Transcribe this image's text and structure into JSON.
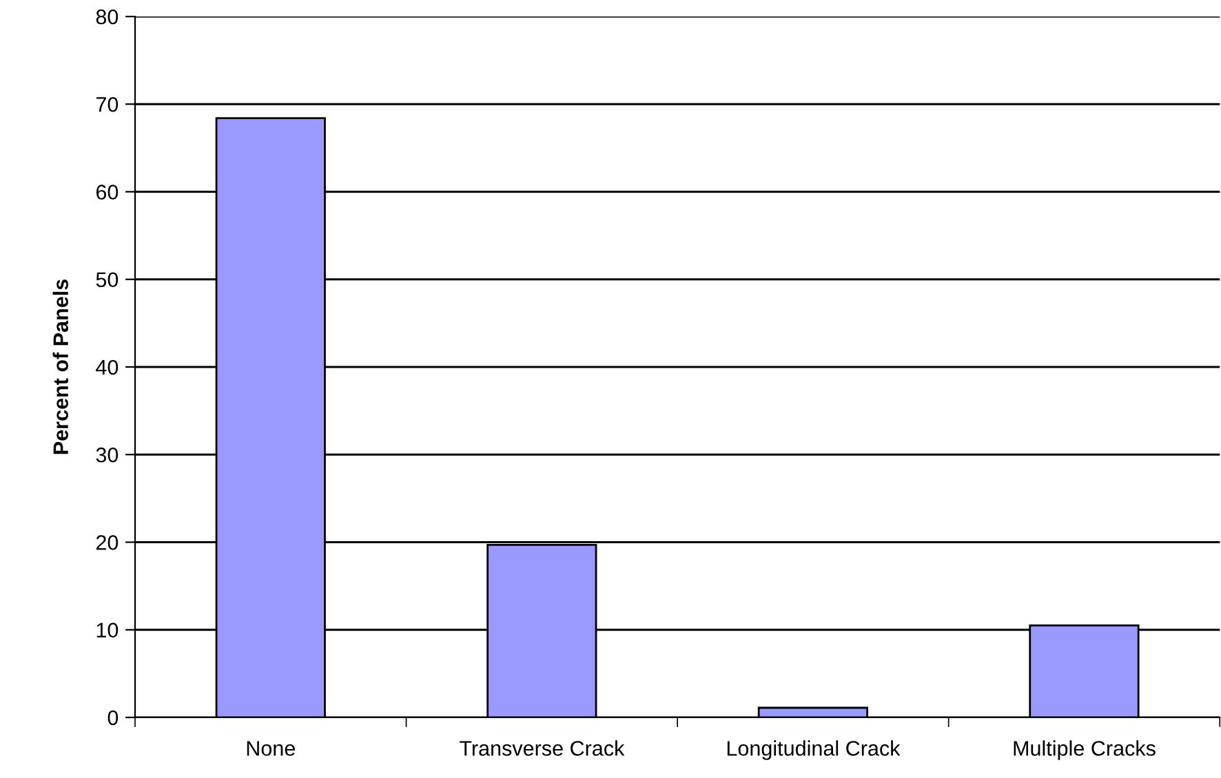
{
  "chart_data": {
    "type": "bar",
    "ylabel": "Percent of Panels",
    "categories": [
      "None",
      "Transverse Crack",
      "Longitudinal Crack",
      "Multiple Cracks"
    ],
    "values": [
      68.4,
      19.7,
      1.1,
      10.5
    ],
    "color": "#9999ff",
    "ylim": [
      0,
      80
    ],
    "yticks": [
      0,
      10,
      20,
      30,
      40,
      50,
      60,
      70,
      80
    ],
    "grid": "y",
    "legend": false
  }
}
